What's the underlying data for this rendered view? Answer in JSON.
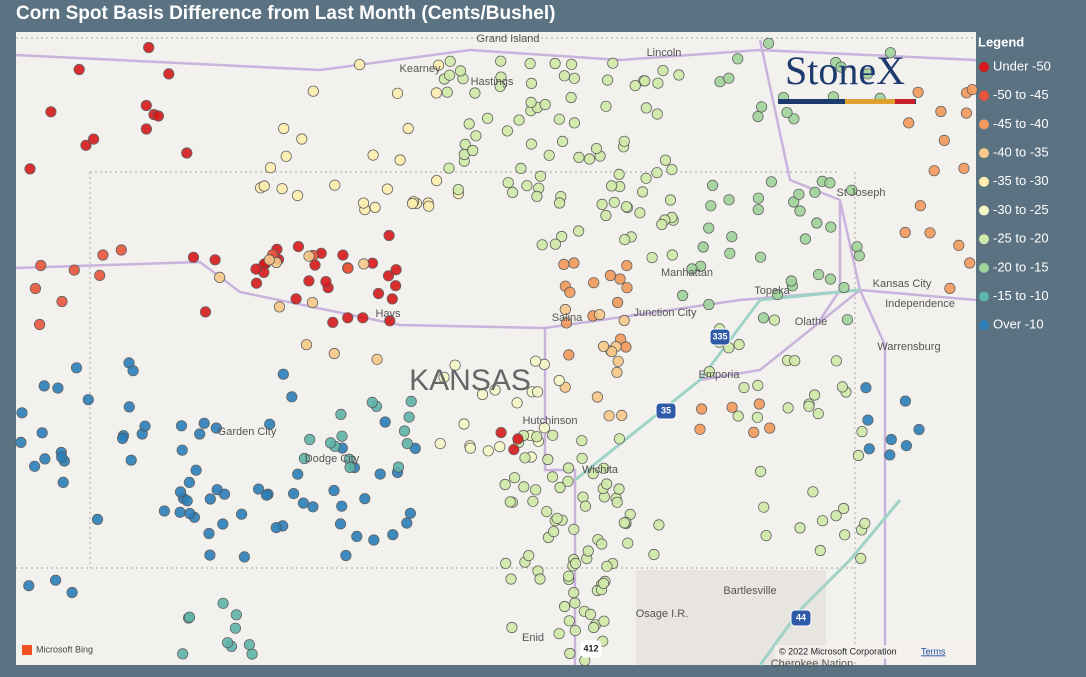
{
  "title": "Corn Spot Basis Difference from Last Month (Cents/Bushel)",
  "legend": {
    "title": "Legend",
    "items": [
      {
        "label": "Under -50",
        "color": "#d7191c"
      },
      {
        "label": "-50 to -45",
        "color": "#e9553b"
      },
      {
        "label": "-45 to -40",
        "color": "#f29a5b"
      },
      {
        "label": "-40 to -35",
        "color": "#f8c98a"
      },
      {
        "label": "-35 to -30",
        "color": "#fdeeae"
      },
      {
        "label": "-30 to -25",
        "color": "#f3f8c6"
      },
      {
        "label": "-25 to -20",
        "color": "#d0eaa9"
      },
      {
        "label": "-20 to -15",
        "color": "#9fd49b"
      },
      {
        "label": "-15 to -10",
        "color": "#5fb4aa"
      },
      {
        "label": "Over -10",
        "color": "#2b7fb9"
      }
    ]
  },
  "logo": "StoneX",
  "map": {
    "labels": [
      "Grand Island",
      "Kearney",
      "Hastings",
      "Lincoln",
      "St Joseph",
      "Manhattan",
      "Topeka",
      "Kansas City",
      "Independence",
      "Olathe",
      "Junction City",
      "Salina",
      "Hays",
      "Emporia",
      "Warrensburg",
      "Hutchinson",
      "Garden City",
      "Dodge City",
      "Wichita",
      "Bartlesville",
      "Osage I.R.",
      "Enid",
      "Cherokee Nation"
    ],
    "state": "KANSAS",
    "highways": [
      "335",
      "35",
      "44",
      "412"
    ]
  },
  "attribution": {
    "provider": "Microsoft Bing",
    "copyright": "© 2022 Microsoft Corporation",
    "terms": "Terms"
  }
}
